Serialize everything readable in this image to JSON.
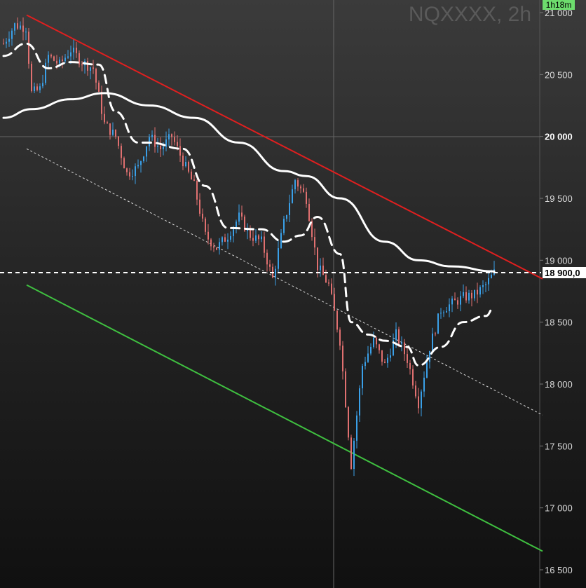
{
  "chart_data": {
    "type": "candlestick",
    "title": "NQXXXX, 2h",
    "timer": "1h18m",
    "ylim": [
      16450,
      21100
    ],
    "grid": false,
    "y_ticks": [
      {
        "value": 21000,
        "label": "21 000"
      },
      {
        "value": 20500,
        "label": "20 500"
      },
      {
        "value": 20000,
        "label": "20 000"
      },
      {
        "value": 19500,
        "label": "19 500"
      },
      {
        "value": 19000,
        "label": "19 000"
      },
      {
        "value": 18500,
        "label": "18 500"
      },
      {
        "value": 18000,
        "label": "18 000"
      },
      {
        "value": 17500,
        "label": "17 500"
      },
      {
        "value": 17000,
        "label": "17 000"
      },
      {
        "value": 16500,
        "label": "16 500"
      }
    ],
    "bold_tick": 20000,
    "last_price": {
      "value": 18900,
      "label": "18 900,0"
    },
    "path_keypoints": [
      [
        0,
        20750
      ],
      [
        4,
        20900
      ],
      [
        8,
        20880
      ],
      [
        10,
        20350
      ],
      [
        13,
        20380
      ],
      [
        16,
        20650
      ],
      [
        20,
        20580
      ],
      [
        24,
        20700
      ],
      [
        28,
        20600
      ],
      [
        32,
        20550
      ],
      [
        36,
        20100
      ],
      [
        40,
        20000
      ],
      [
        44,
        19700
      ],
      [
        48,
        19750
      ],
      [
        52,
        20000
      ],
      [
        56,
        19900
      ],
      [
        60,
        20000
      ],
      [
        64,
        19800
      ],
      [
        68,
        19600
      ],
      [
        72,
        19200
      ],
      [
        76,
        19100
      ],
      [
        80,
        19200
      ],
      [
        84,
        19350
      ],
      [
        88,
        19200
      ],
      [
        92,
        19150
      ],
      [
        96,
        18850
      ],
      [
        100,
        19300
      ],
      [
        104,
        19650
      ],
      [
        108,
        19500
      ],
      [
        112,
        18950
      ],
      [
        116,
        18800
      ],
      [
        120,
        18350
      ],
      [
        124,
        17350
      ],
      [
        128,
        18150
      ],
      [
        132,
        18350
      ],
      [
        136,
        18150
      ],
      [
        140,
        18400
      ],
      [
        144,
        18200
      ],
      [
        148,
        17850
      ],
      [
        152,
        18300
      ],
      [
        156,
        18600
      ],
      [
        160,
        18650
      ],
      [
        164,
        18700
      ],
      [
        168,
        18720
      ],
      [
        172,
        18800
      ],
      [
        175,
        18900
      ]
    ],
    "series": [
      {
        "kind": "sma-slow",
        "style": "solid-white",
        "points": [
          [
            0,
            20150
          ],
          [
            10,
            20220
          ],
          [
            24,
            20300
          ],
          [
            36,
            20350
          ],
          [
            52,
            20250
          ],
          [
            68,
            20150
          ],
          [
            84,
            19950
          ],
          [
            100,
            19720
          ],
          [
            108,
            19680
          ],
          [
            120,
            19500
          ],
          [
            136,
            19150
          ],
          [
            148,
            19000
          ],
          [
            160,
            18950
          ],
          [
            175,
            18910
          ]
        ]
      },
      {
        "kind": "sma-fast",
        "style": "dashed-white",
        "points": [
          [
            0,
            20650
          ],
          [
            8,
            20750
          ],
          [
            16,
            20550
          ],
          [
            24,
            20600
          ],
          [
            34,
            20580
          ],
          [
            40,
            20200
          ],
          [
            48,
            19950
          ],
          [
            52,
            19950
          ],
          [
            64,
            19900
          ],
          [
            72,
            19600
          ],
          [
            80,
            19260
          ],
          [
            92,
            19250
          ],
          [
            100,
            19150
          ],
          [
            106,
            19200
          ],
          [
            112,
            19350
          ],
          [
            120,
            19050
          ],
          [
            124,
            18500
          ],
          [
            130,
            18400
          ],
          [
            136,
            18350
          ],
          [
            144,
            18300
          ],
          [
            148,
            18150
          ],
          [
            156,
            18300
          ],
          [
            164,
            18500
          ],
          [
            172,
            18550
          ],
          [
            175,
            18620
          ]
        ]
      }
    ],
    "trendlines": [
      {
        "kind": "resistance",
        "color": "#e01f1f",
        "style": "solid",
        "from": [
          8,
          20980
        ],
        "to": [
          190,
          18850
        ]
      },
      {
        "kind": "channel-mid",
        "color": "#d8d8d8",
        "style": "dotted",
        "from": [
          8,
          19900
        ],
        "to": [
          190,
          17750
        ]
      },
      {
        "kind": "support",
        "color": "#3fc040",
        "style": "solid",
        "from": [
          8,
          18800
        ],
        "to": [
          190,
          16650
        ]
      }
    ],
    "colors": {
      "up": "#3aa0e8",
      "down": "#e07070"
    }
  }
}
